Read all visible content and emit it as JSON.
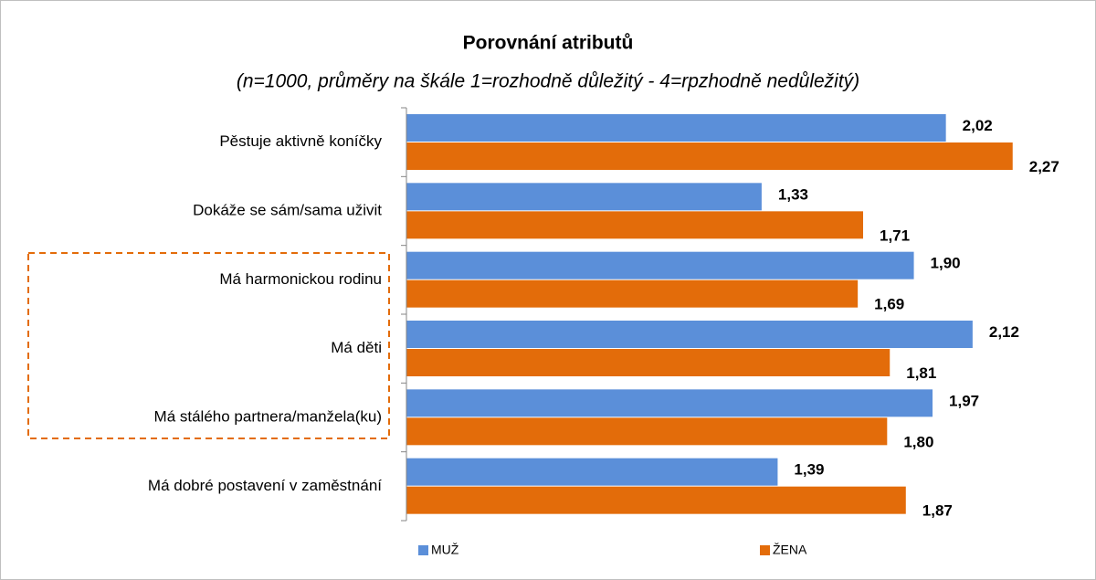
{
  "chart_data": {
    "type": "hbar",
    "title": "Porovnání atributů",
    "subtitle": "(n=1000, průměry na škále 1=rozhodně důležitý - 4=rpzhodně nedůležitý)",
    "categories": [
      "Pěstuje aktivně koníčky",
      "Dokáže se sám/sama  uživit",
      "Má harmonickou rodinu",
      "Má děti",
      "Má stálého partnera/manžela(ku)",
      "Má dobré postavení v zaměstnání"
    ],
    "series": [
      {
        "name": "MUŽ",
        "color": "#5b8fd9",
        "values": [
          2.02,
          1.33,
          1.9,
          2.12,
          1.97,
          1.39
        ],
        "value_labels": [
          "2,02",
          "1,33",
          "1,90",
          "2,12",
          "1,97",
          "1,39"
        ]
      },
      {
        "name": "ŽENA",
        "color": "#e36c0a",
        "values": [
          2.27,
          1.71,
          1.69,
          1.81,
          1.8,
          1.87
        ],
        "value_labels": [
          "2,27",
          "1,71",
          "1,69",
          "1,81",
          "1,80",
          "1,87"
        ]
      }
    ],
    "xlim": [
      0,
      2.5
    ]
  }
}
